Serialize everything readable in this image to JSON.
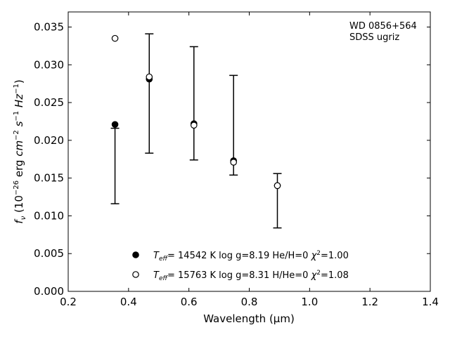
{
  "chart_data": {
    "type": "scatter",
    "title": "",
    "xlabel": "Wavelength (μm)",
    "ylabel": "f_ν (10^-26 erg cm^-2 s^-1 Hz^-1)",
    "xlim": [
      0.2,
      1.4
    ],
    "ylim": [
      0.0,
      0.037
    ],
    "x_ticks": [
      0.2,
      0.4,
      0.6,
      0.8,
      1.0,
      1.2,
      1.4
    ],
    "x_tick_labels": [
      "0.2",
      "0.4",
      "0.6",
      "0.8",
      "1.0",
      "1.2",
      "1.4"
    ],
    "y_ticks": [
      0.0,
      0.005,
      0.01,
      0.015,
      0.02,
      0.025,
      0.03,
      0.035
    ],
    "y_tick_labels": [
      "0.000",
      "0.005",
      "0.010",
      "0.015",
      "0.020",
      "0.025",
      "0.030",
      "0.035"
    ],
    "grid": false,
    "annotation": [
      "WD 0856+564",
      "SDSS ugriz"
    ],
    "observed": {
      "x": [
        0.3551,
        0.4686,
        0.6166,
        0.748,
        0.8932
      ],
      "y": [
        0.0166,
        0.0262,
        0.0249,
        0.022,
        0.012
      ],
      "yerr": [
        0.005,
        0.0079,
        0.0075,
        0.0066,
        0.0036
      ]
    },
    "series": [
      {
        "name": "T_eff= 14542 K  log g=8.19  He/H=0  χ²=1.00",
        "marker": "filled-circle",
        "x": [
          0.3551,
          0.4686,
          0.6166,
          0.748,
          0.8932
        ],
        "y": [
          0.0221,
          0.0281,
          0.0222,
          0.0173,
          0.014
        ]
      },
      {
        "name": "T_eff= 15763 K  log g=8.31  H/He=0  χ²=1.08",
        "marker": "open-circle",
        "x": [
          0.3551,
          0.4686,
          0.6166,
          0.748,
          0.8932
        ],
        "y": [
          0.0335,
          0.0284,
          0.022,
          0.0171,
          0.014
        ]
      }
    ],
    "legend_position": "lower-center"
  }
}
